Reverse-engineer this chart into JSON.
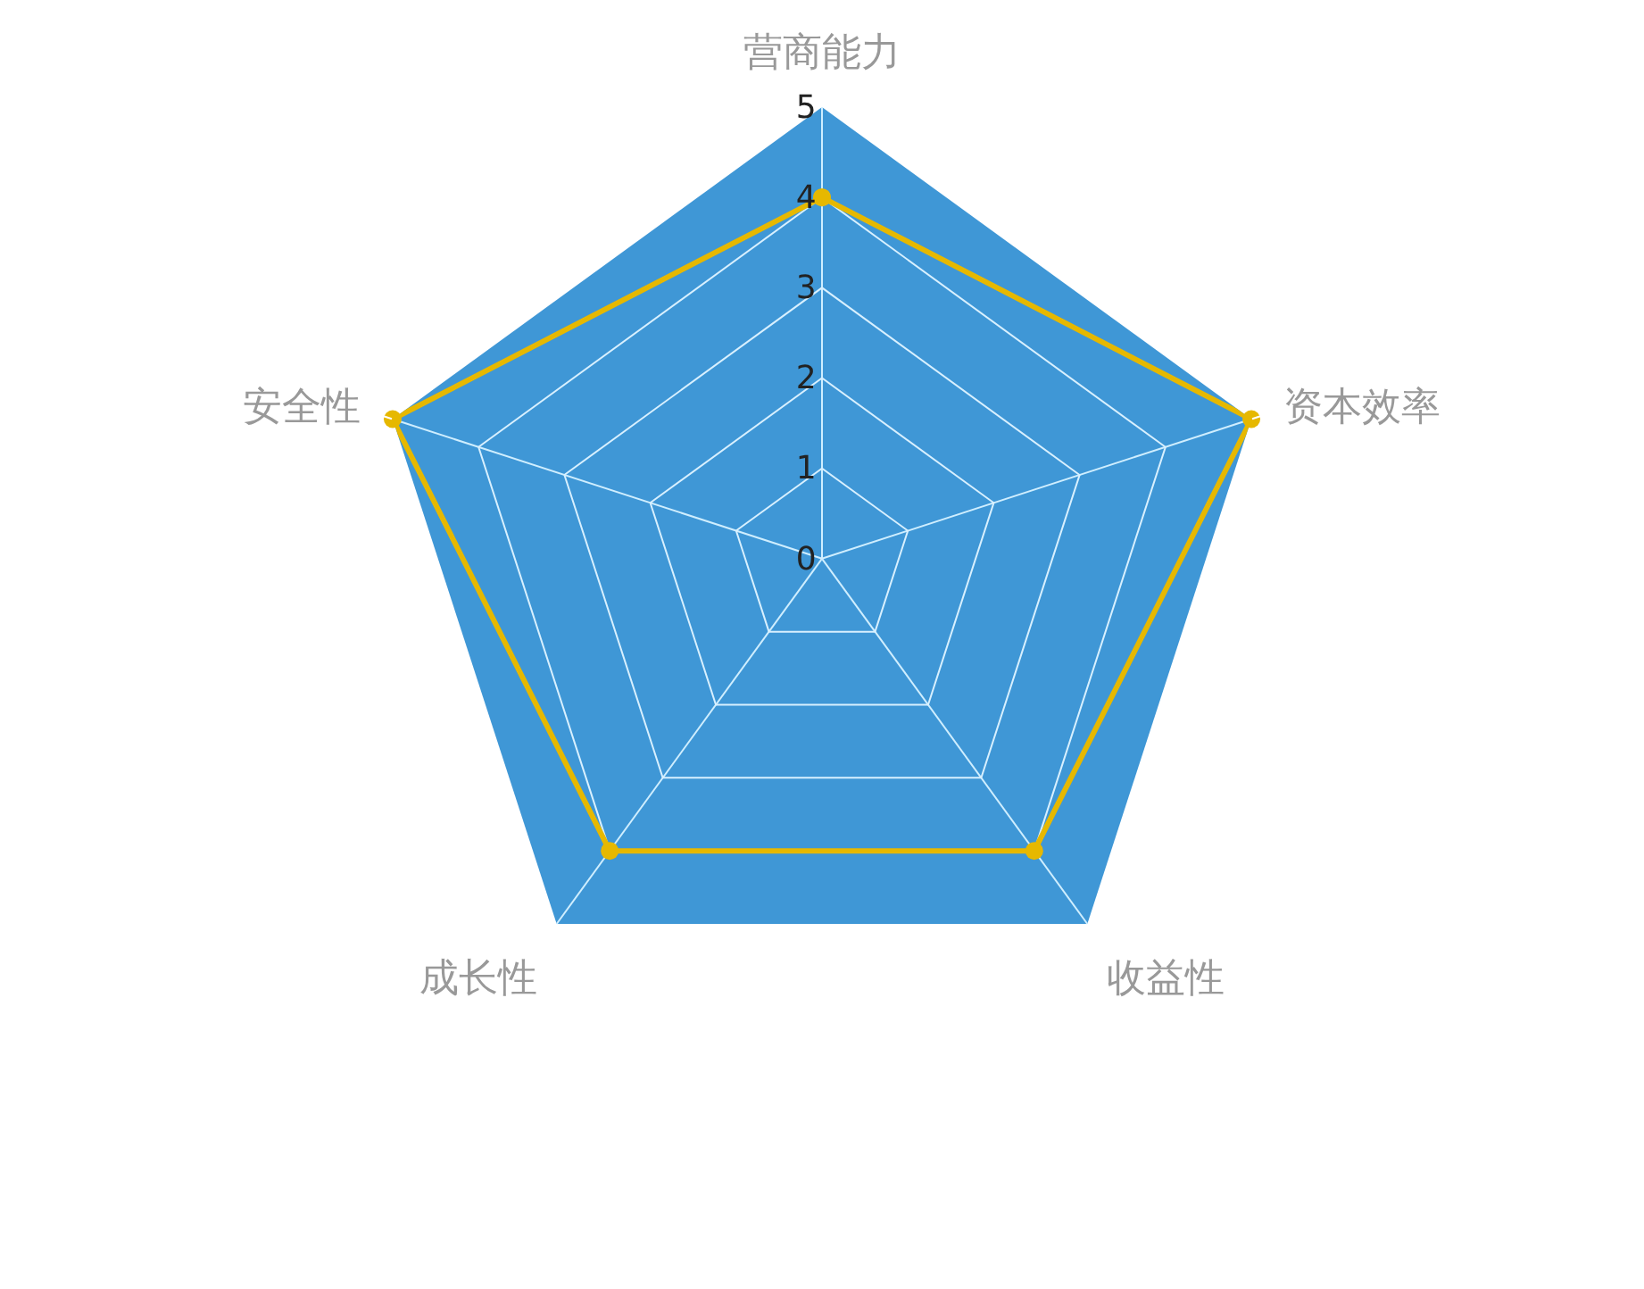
{
  "chart_data": {
    "type": "radar",
    "categories": [
      "营商能力",
      "资本效率",
      "收益性",
      "成长性",
      "安全性"
    ],
    "series": [
      {
        "color": "#e6b800",
        "values": [
          4,
          5,
          4,
          4,
          5
        ]
      }
    ],
    "ylim": [
      0,
      5
    ],
    "yticks": [
      0,
      1,
      2,
      3,
      4,
      5
    ],
    "grid": true,
    "marker": "circle",
    "line_style": "solid"
  }
}
